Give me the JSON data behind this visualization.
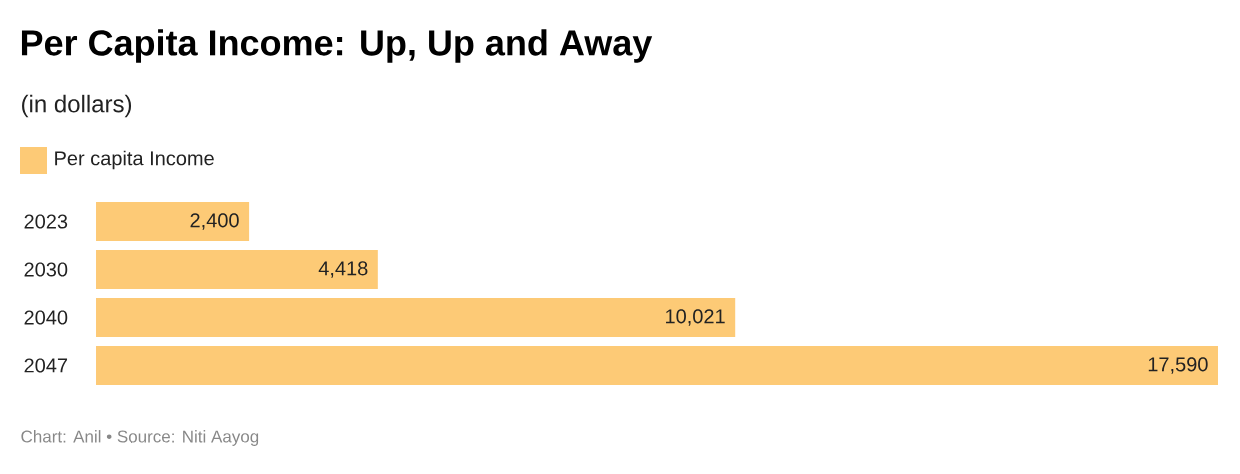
{
  "chart_data": {
    "type": "bar",
    "orientation": "horizontal",
    "title": "Per Capita Income: Up, Up and Away",
    "subtitle": "(in dollars)",
    "categories": [
      "2023",
      "2030",
      "2040",
      "2047"
    ],
    "series": [
      {
        "name": "Per capita Income",
        "color": "#fdca76",
        "values": [
          2400,
          4418,
          10021,
          17590
        ],
        "value_labels": [
          "2,400",
          "4,418",
          "10,021",
          "17,590"
        ]
      }
    ],
    "legend": "top left",
    "annotations": [
      "Chart: Anil • Source: Niti Aayog"
    ]
  }
}
